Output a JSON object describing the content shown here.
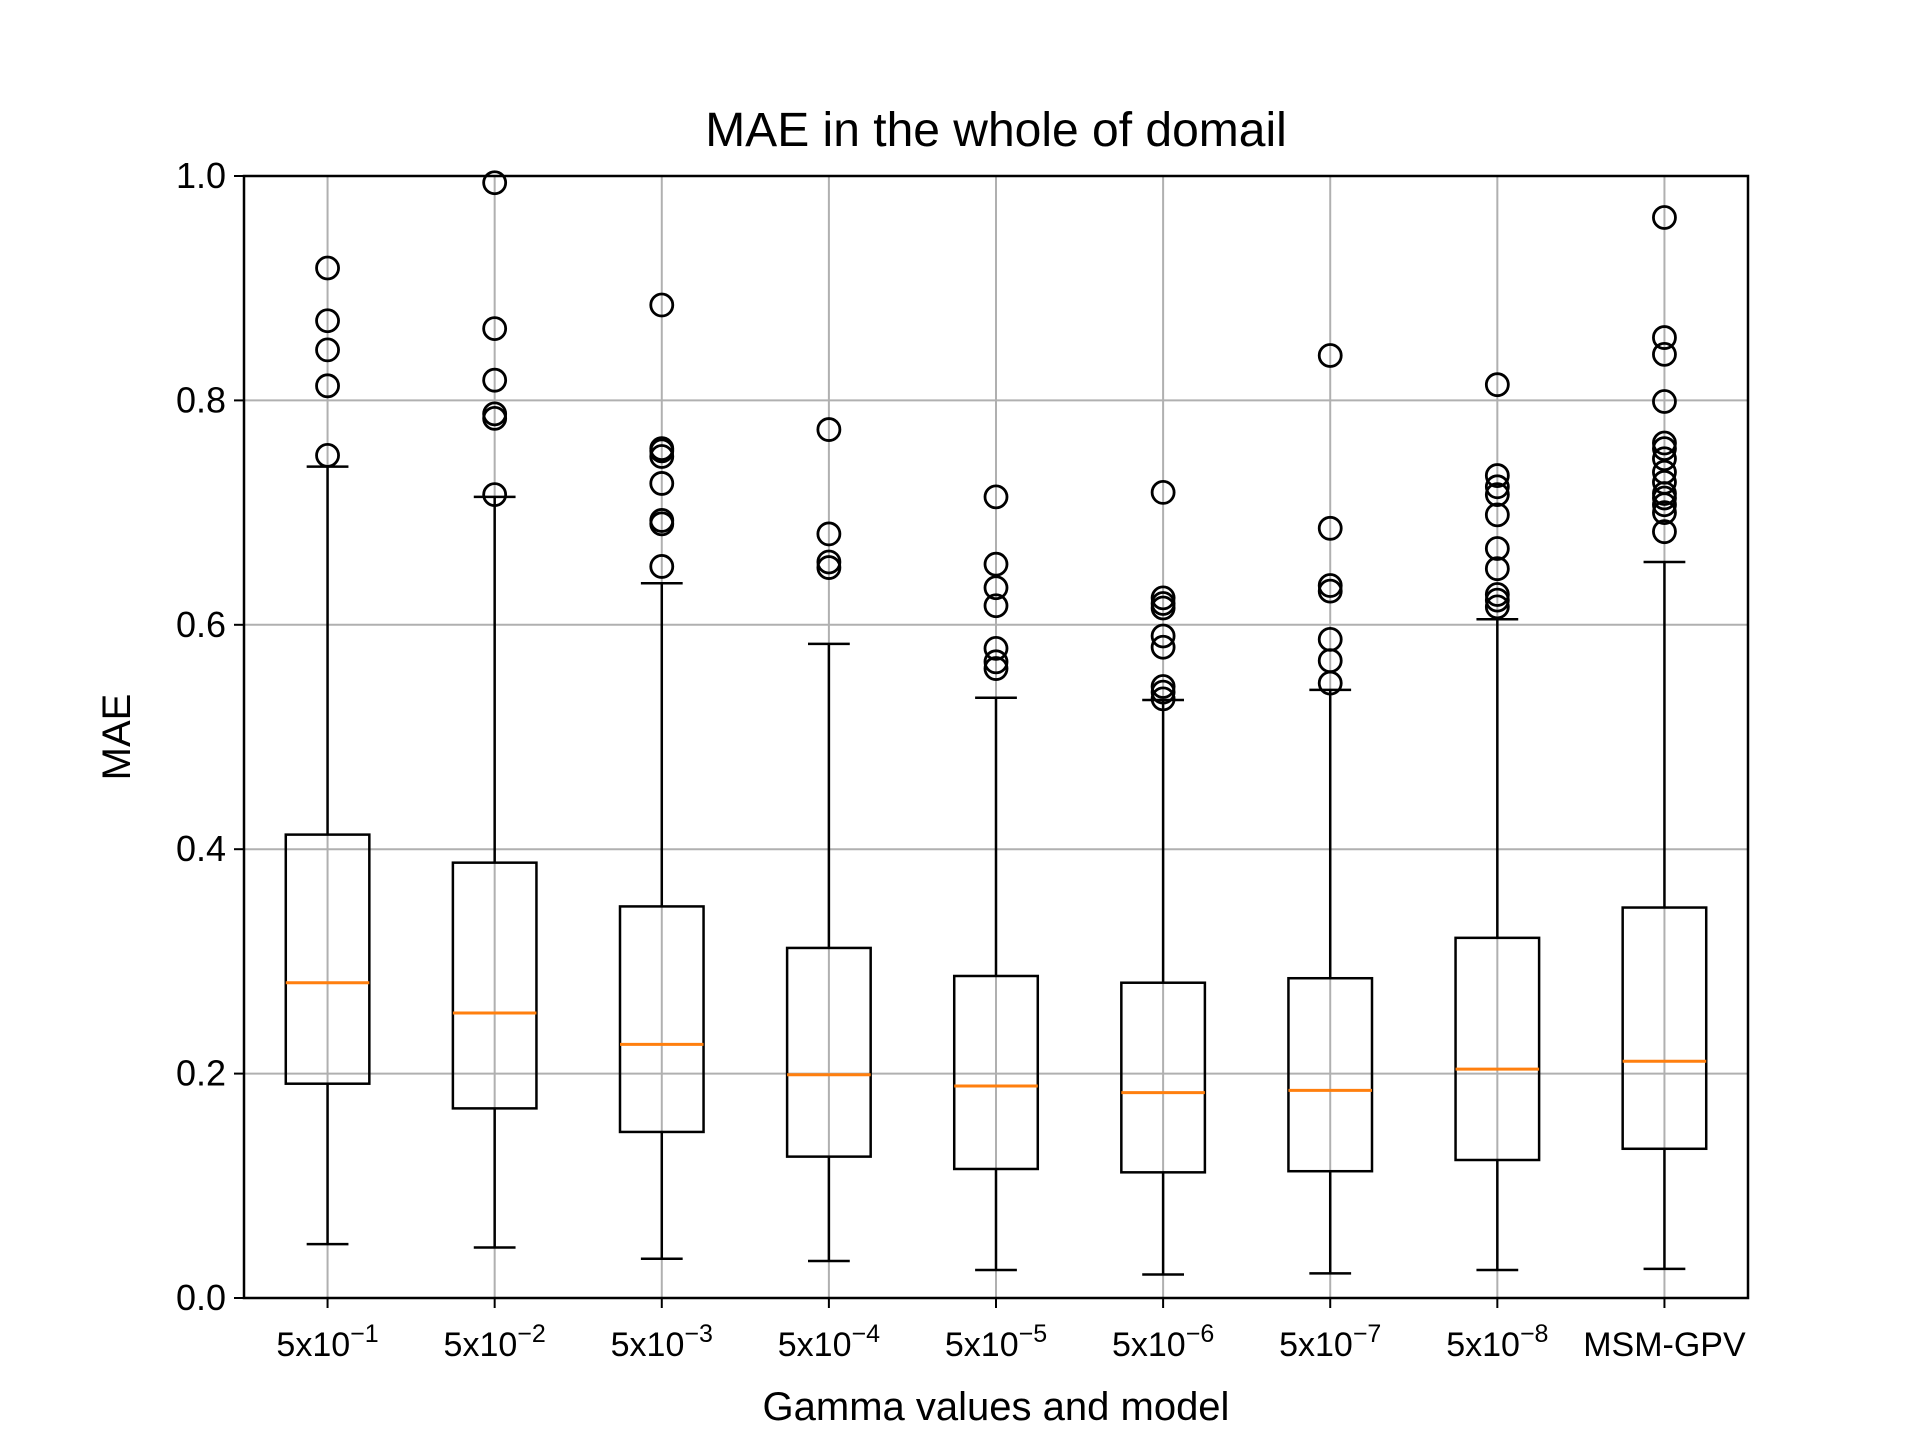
{
  "chart_data": {
    "type": "box",
    "title": "MAE in the whole of domail",
    "xlabel": "Gamma values and model",
    "ylabel": "MAE",
    "ylim": [
      0.0,
      1.0
    ],
    "yticks": [
      "0.0",
      "0.2",
      "0.4",
      "0.6",
      "0.8",
      "1.0"
    ],
    "grid": true,
    "categories": [
      {
        "base": "5x10",
        "exp": "−1"
      },
      {
        "base": "5x10",
        "exp": "−2"
      },
      {
        "base": "5x10",
        "exp": "−3"
      },
      {
        "base": "5x10",
        "exp": "−4"
      },
      {
        "base": "5x10",
        "exp": "−5"
      },
      {
        "base": "5x10",
        "exp": "−6"
      },
      {
        "base": "5x10",
        "exp": "−7"
      },
      {
        "base": "5x10",
        "exp": "−8"
      },
      {
        "base": "MSM-GPV",
        "exp": ""
      }
    ],
    "boxes": [
      {
        "whisker_low": 0.048,
        "q1": 0.191,
        "median": 0.281,
        "q3": 0.413,
        "whisker_high": 0.741,
        "outliers": [
          0.751,
          0.813,
          0.845,
          0.871,
          0.918
        ]
      },
      {
        "whisker_low": 0.045,
        "q1": 0.169,
        "median": 0.254,
        "q3": 0.388,
        "whisker_high": 0.714,
        "outliers": [
          0.716,
          0.784,
          0.788,
          0.818,
          0.864,
          0.994
        ]
      },
      {
        "whisker_low": 0.035,
        "q1": 0.148,
        "median": 0.226,
        "q3": 0.349,
        "whisker_high": 0.637,
        "outliers": [
          0.652,
          0.69,
          0.693,
          0.726,
          0.75,
          0.755,
          0.757,
          0.885
        ]
      },
      {
        "whisker_low": 0.033,
        "q1": 0.126,
        "median": 0.199,
        "q3": 0.312,
        "whisker_high": 0.583,
        "outliers": [
          0.651,
          0.656,
          0.681,
          0.774
        ]
      },
      {
        "whisker_low": 0.025,
        "q1": 0.115,
        "median": 0.189,
        "q3": 0.287,
        "whisker_high": 0.535,
        "outliers": [
          0.561,
          0.567,
          0.579,
          0.617,
          0.633,
          0.654,
          0.714
        ]
      },
      {
        "whisker_low": 0.021,
        "q1": 0.112,
        "median": 0.183,
        "q3": 0.281,
        "whisker_high": 0.533,
        "outliers": [
          0.534,
          0.54,
          0.545,
          0.58,
          0.59,
          0.615,
          0.619,
          0.624,
          0.718
        ]
      },
      {
        "whisker_low": 0.022,
        "q1": 0.113,
        "median": 0.185,
        "q3": 0.285,
        "whisker_high": 0.542,
        "outliers": [
          0.548,
          0.568,
          0.587,
          0.63,
          0.635,
          0.686,
          0.84
        ]
      },
      {
        "whisker_low": 0.025,
        "q1": 0.123,
        "median": 0.204,
        "q3": 0.321,
        "whisker_high": 0.605,
        "outliers": [
          0.616,
          0.622,
          0.627,
          0.65,
          0.668,
          0.698,
          0.716,
          0.723,
          0.733,
          0.814
        ]
      },
      {
        "whisker_low": 0.026,
        "q1": 0.133,
        "median": 0.211,
        "q3": 0.348,
        "whisker_high": 0.656,
        "outliers": [
          0.683,
          0.7,
          0.707,
          0.713,
          0.717,
          0.727,
          0.736,
          0.748,
          0.757,
          0.762,
          0.799,
          0.841,
          0.856,
          0.963
        ]
      }
    ],
    "colors": {
      "box": "#000000",
      "median": "#ff7f0e",
      "grid": "#b0b0b0",
      "outlier": "#000000"
    }
  }
}
